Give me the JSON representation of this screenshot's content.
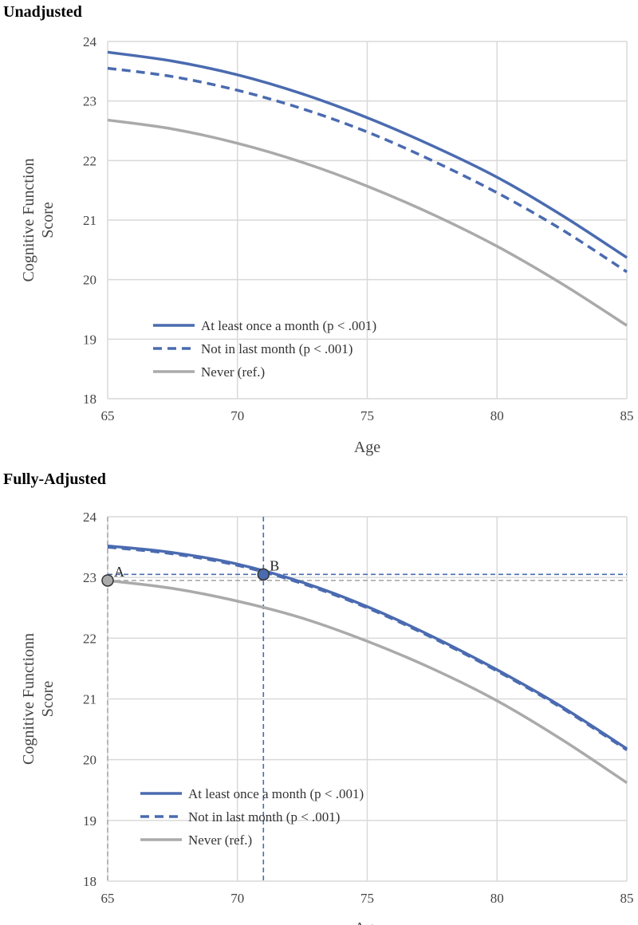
{
  "chart_data": [
    {
      "type": "line",
      "title": "Unadjusted",
      "xlabel": "Age",
      "ylabel": [
        "Cognitive Function",
        "Score"
      ],
      "xlim": [
        65,
        85
      ],
      "ylim": [
        18,
        24
      ],
      "xticks": [
        65,
        70,
        75,
        80,
        85
      ],
      "yticks": [
        18,
        19,
        20,
        21,
        22,
        23,
        24
      ],
      "grid": true,
      "legend_position": "bottom-left",
      "x": [
        65,
        67.5,
        70,
        72.5,
        75,
        77.5,
        80,
        82.5,
        85
      ],
      "series": [
        {
          "name": "At least once a month (p < .001)",
          "color": "#4a6bb0",
          "style": "solid",
          "values": [
            23.82,
            23.67,
            23.44,
            23.12,
            22.72,
            22.25,
            21.72,
            21.08,
            20.37
          ]
        },
        {
          "name": "Not in last month (p < .001)",
          "color": "#4a6bb0",
          "style": "dashed",
          "values": [
            23.55,
            23.41,
            23.18,
            22.87,
            22.48,
            22.0,
            21.46,
            20.84,
            20.13
          ]
        },
        {
          "name": "Never (ref.)",
          "color": "#aaaaaa",
          "style": "solid",
          "values": [
            22.68,
            22.53,
            22.29,
            21.97,
            21.57,
            21.1,
            20.56,
            19.93,
            19.23
          ]
        }
      ]
    },
    {
      "type": "line",
      "title": "Fully-Adjusted",
      "xlabel": "Age",
      "ylabel": [
        "Cognitive Functionn",
        "Score"
      ],
      "xlim": [
        65,
        85
      ],
      "ylim": [
        18,
        24
      ],
      "xticks": [
        65,
        70,
        75,
        80,
        85
      ],
      "yticks": [
        18,
        19,
        20,
        21,
        22,
        23,
        24
      ],
      "grid": true,
      "legend_position": "bottom-left",
      "x": [
        65,
        67.5,
        70,
        72.5,
        75,
        77.5,
        80,
        82.5,
        85
      ],
      "series": [
        {
          "name": "At least once a month (p < .001)",
          "color": "#4a6bb0",
          "style": "solid",
          "values": [
            23.52,
            23.41,
            23.22,
            22.92,
            22.52,
            22.03,
            21.48,
            20.87,
            20.18
          ]
        },
        {
          "name": "Not in last month (p < .001)",
          "color": "#4a6bb0",
          "style": "dashed",
          "values": [
            23.5,
            23.39,
            23.2,
            22.9,
            22.5,
            22.01,
            21.46,
            20.85,
            20.16
          ]
        },
        {
          "name": "Never (ref.)",
          "color": "#aaaaaa",
          "style": "solid",
          "values": [
            22.95,
            22.82,
            22.61,
            22.33,
            21.95,
            21.5,
            20.97,
            20.33,
            19.62
          ]
        }
      ],
      "annotations": [
        {
          "label": "A",
          "x": 65,
          "y": 22.95,
          "color": "#999999",
          "fill": "#aaaaaa"
        },
        {
          "label": "B",
          "x": 71,
          "y": 23.05,
          "color": "#4a6bb0",
          "fill": "#4a6bb0"
        }
      ],
      "reference_lines": [
        {
          "axis": "x",
          "value": 71,
          "color": "#4a6bb0",
          "style": "dashed"
        },
        {
          "axis": "x",
          "value": 65,
          "color": "#aaaaaa",
          "style": "dashed"
        },
        {
          "axis": "y",
          "value": 23.05,
          "color": "#4a6bb0",
          "style": "dashed"
        },
        {
          "axis": "y",
          "value": 22.95,
          "color": "#aaaaaa",
          "style": "dashed"
        }
      ]
    }
  ]
}
